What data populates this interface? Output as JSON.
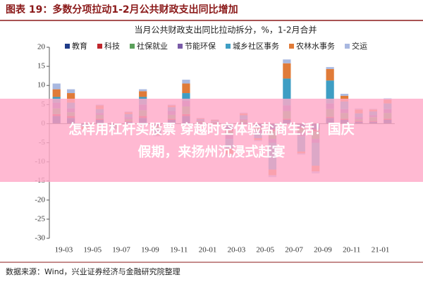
{
  "chart_data": {
    "type": "stacked_bar",
    "title": "图表 19：多数分项拉动1-2月公共财政支出同比增加",
    "subtitle": "当月公共财政支出同比拉动拆分，%，1-2月合并",
    "source": "数据来源：Wind，兴业证券经济与金融研究院整理",
    "categories": [
      "19-03",
      null,
      "19-05",
      null,
      "19-07",
      null,
      "19-09",
      null,
      "19-11",
      null,
      "20-01",
      null,
      "20-03",
      null,
      "20-05",
      null,
      "20-07",
      null,
      "20-09",
      null,
      "20-11",
      null,
      "21-01",
      null
    ],
    "series": [
      {
        "name": "教育",
        "color": "#1f3c88",
        "values": [
          2,
          1.5,
          -0.3,
          1,
          -0.3,
          0.5,
          1.5,
          -0.5,
          1,
          2,
          0.3,
          0.2,
          -1.5,
          0.3,
          -1,
          -1.5,
          1,
          -1,
          -1.5,
          1.5,
          1,
          0.5,
          0.5,
          1
        ]
      },
      {
        "name": "科技",
        "color": "#c0272d",
        "values": [
          0.5,
          0.5,
          0,
          0.3,
          -0.2,
          0.2,
          0.5,
          -0.3,
          0.3,
          0.5,
          0.1,
          0.1,
          -0.5,
          0.1,
          -0.3,
          -0.5,
          0.3,
          -0.3,
          -0.5,
          0.3,
          0.3,
          0.2,
          0.2,
          0.3
        ]
      },
      {
        "name": "社保就业",
        "color": "#5ba05b",
        "values": [
          1.5,
          1,
          0,
          1,
          -0.2,
          0.5,
          1.5,
          -0.5,
          1,
          2,
          0.3,
          0.2,
          -1,
          0.5,
          -0.5,
          -2,
          2,
          -1,
          -2,
          2,
          1.5,
          0.5,
          1,
          1.5
        ]
      },
      {
        "name": "节能环保",
        "color": "#7a5ba8",
        "values": [
          1.5,
          1,
          0,
          0.5,
          -0.1,
          0.5,
          1.5,
          -0.5,
          1,
          1.5,
          0.2,
          0.1,
          -1,
          0.3,
          -0.5,
          -1,
          1.5,
          -1,
          -1,
          1.5,
          1,
          0.5,
          0.5,
          1
        ]
      },
      {
        "name": "城乡社区事务",
        "color": "#3e9ec4",
        "values": [
          1.5,
          1.5,
          -0.5,
          1,
          -0.3,
          0.8,
          2,
          -0.7,
          1,
          2,
          0.3,
          0.2,
          -2.5,
          1,
          -1.5,
          -7,
          7,
          -4,
          -6,
          6,
          2,
          1,
          1,
          1.5
        ]
      },
      {
        "name": "农林水事务",
        "color": "#e07b39",
        "values": [
          2,
          2.5,
          -0.7,
          1,
          -0.2,
          0.5,
          1.5,
          -0.5,
          0.5,
          2.5,
          0.2,
          0.2,
          -1.5,
          0.5,
          -0.5,
          -1.5,
          4,
          -0.5,
          -1.5,
          3,
          1.5,
          1,
          0.5,
          1
        ]
      },
      {
        "name": "交运",
        "color": "#a9b8e0",
        "values": [
          1.5,
          1,
          0,
          0.2,
          -0.2,
          0.2,
          0.5,
          -0.3,
          0.2,
          1,
          0.1,
          0.1,
          -0.5,
          0.2,
          -0.3,
          -0.5,
          1,
          -0.3,
          -0.5,
          0.5,
          0.5,
          0.3,
          0.2,
          0.3
        ]
      }
    ],
    "ylim": [
      -30,
      20
    ],
    "yticks": [
      -30,
      -25,
      -20,
      -15,
      -10,
      -5,
      0,
      5,
      10,
      15,
      20
    ]
  },
  "banner": {
    "lines": [
      "怎样用杠杆买股票 穿越时空体验盐商生活！国庆",
      "假期，来扬州沉浸式赶宴"
    ]
  }
}
